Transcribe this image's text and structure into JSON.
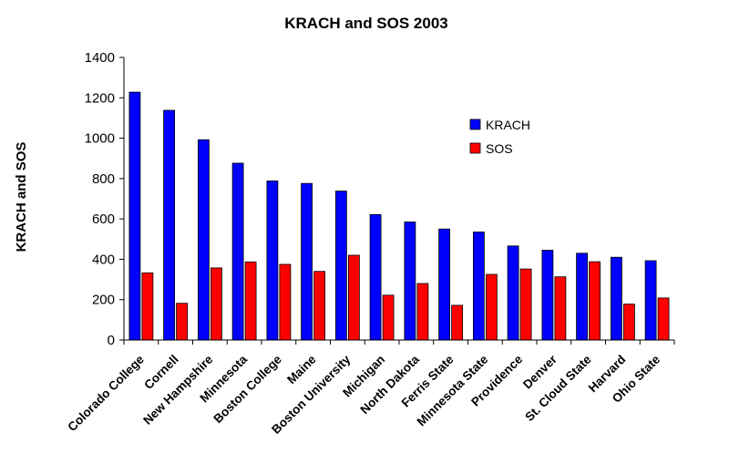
{
  "chart_data": {
    "type": "bar",
    "title": "KRACH and SOS 2003",
    "xlabel": "",
    "ylabel": "KRACH and SOS",
    "ylim": [
      0,
      1400
    ],
    "yticks": [
      "0",
      "200",
      "400",
      "600",
      "800",
      "1000",
      "1200",
      "1400"
    ],
    "grid": false,
    "legend_position": "right",
    "categories": [
      "Colorado College",
      "Cornell",
      "New Hampshire",
      "Minnesota",
      "Boston College",
      "Maine",
      "Boston University",
      "Michigan",
      "North Dakota",
      "Ferris State",
      "Minnesota State",
      "Providence",
      "Denver",
      "St. Cloud State",
      "Harvard",
      "Ohio State"
    ],
    "series": [
      {
        "name": "KRACH",
        "color": "#0000ff",
        "values": [
          1228,
          1138,
          992,
          876,
          788,
          776,
          738,
          622,
          585,
          550,
          535,
          466,
          445,
          430,
          410,
          393
        ]
      },
      {
        "name": "SOS",
        "color": "#ff0000",
        "values": [
          333,
          182,
          357,
          387,
          375,
          340,
          420,
          222,
          280,
          172,
          325,
          352,
          313,
          388,
          178,
          208
        ]
      }
    ]
  }
}
